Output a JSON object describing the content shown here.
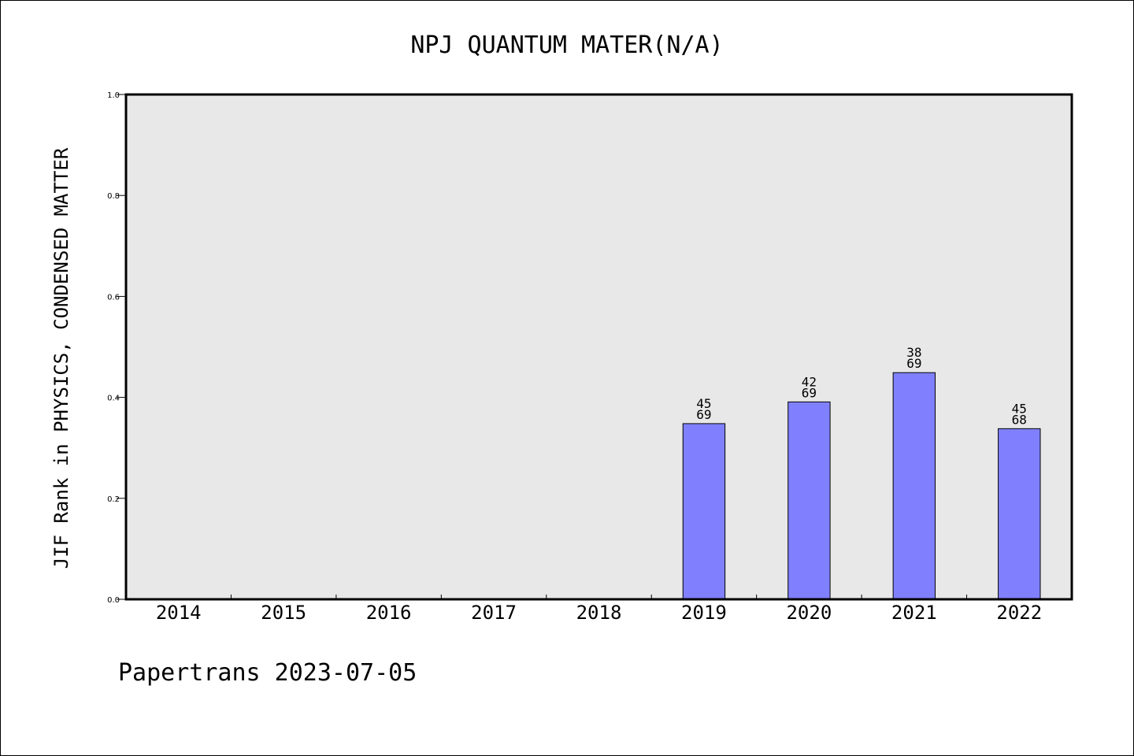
{
  "chart_data": {
    "type": "bar",
    "title": "NPJ QUANTUM MATER(N/A)",
    "ylabel": "JIF Rank in PHYSICS, CONDENSED MATTER",
    "xlabel": "",
    "categories": [
      "2014",
      "2015",
      "2016",
      "2017",
      "2018",
      "2019",
      "2020",
      "2021",
      "2022"
    ],
    "values": [
      null,
      null,
      null,
      null,
      null,
      0.348,
      0.391,
      0.449,
      0.338
    ],
    "bar_labels": [
      null,
      null,
      null,
      null,
      null,
      {
        "rank": "45",
        "total": "69"
      },
      {
        "rank": "42",
        "total": "69"
      },
      {
        "rank": "38",
        "total": "69"
      },
      {
        "rank": "45",
        "total": "68"
      }
    ],
    "ylim": [
      0,
      1.0
    ],
    "yticks": [
      "0.0",
      "0.2",
      "0.4",
      "0.6",
      "0.8",
      "1.0"
    ],
    "grid": false,
    "colors": {
      "bar": "#8080ff",
      "plot_background": "#e8e8e8"
    }
  },
  "footer": {
    "text": "Papertrans 2023-07-05"
  }
}
